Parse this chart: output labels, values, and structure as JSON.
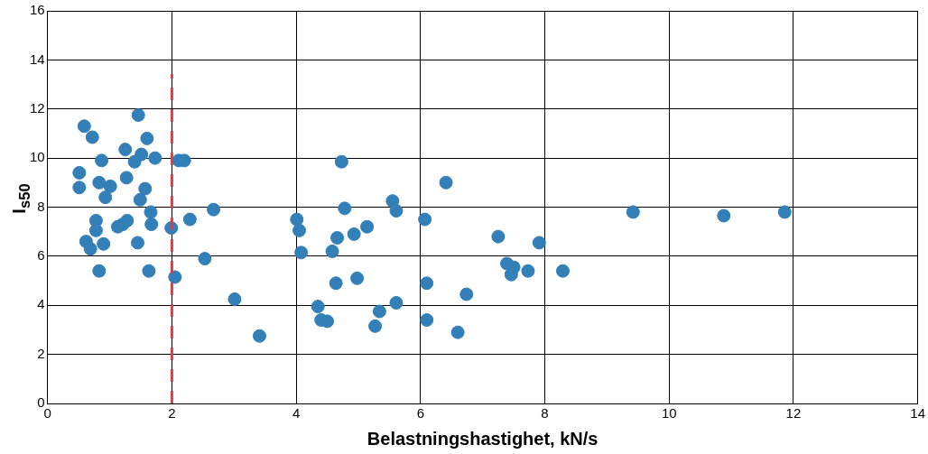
{
  "chart_data": {
    "type": "scatter",
    "xlabel": "Belastningshastighet, kN/s",
    "ylabel": "I$_{s50}$",
    "x": [
      0.59,
      0.72,
      0.51,
      0.51,
      0.87,
      0.83,
      0.93,
      1.01,
      0.78,
      0.78,
      0.9,
      0.62,
      0.69,
      0.83,
      1.25,
      1.46,
      1.6,
      1.51,
      1.4,
      1.27,
      1.73,
      1.57,
      1.49,
      1.13,
      1.21,
      1.28,
      1.66,
      1.67,
      1.45,
      1.63,
      1.99,
      2.05,
      2.11,
      2.2,
      2.29,
      2.67,
      2.53,
      3.01,
      3.41,
      4.01,
      4.05,
      4.08,
      4.35,
      4.4,
      4.5,
      4.58,
      4.64,
      4.66,
      4.73,
      4.78,
      4.93,
      4.98,
      5.14,
      5.27,
      5.34,
      5.55,
      5.61,
      5.61,
      6.07,
      6.1,
      6.1,
      6.41,
      6.6,
      6.74,
      7.25,
      7.39,
      7.5,
      7.46,
      7.73,
      7.91,
      8.29,
      9.42,
      10.88,
      11.86
    ],
    "values": [
      11.3,
      10.85,
      9.4,
      8.8,
      9.9,
      9.0,
      8.4,
      8.85,
      7.45,
      7.05,
      6.5,
      6.6,
      6.3,
      5.4,
      10.35,
      11.75,
      10.8,
      10.15,
      9.85,
      9.2,
      10.0,
      8.75,
      8.3,
      7.2,
      7.3,
      7.45,
      7.8,
      7.3,
      6.55,
      5.4,
      7.15,
      5.15,
      9.9,
      9.9,
      7.5,
      7.9,
      5.9,
      4.25,
      2.75,
      7.5,
      7.05,
      6.15,
      3.95,
      3.4,
      3.35,
      6.2,
      4.9,
      6.75,
      9.85,
      7.95,
      6.9,
      5.1,
      7.2,
      3.15,
      3.75,
      8.25,
      7.85,
      4.1,
      7.5,
      4.9,
      3.4,
      9.0,
      2.9,
      4.45,
      6.8,
      5.7,
      5.55,
      5.25,
      5.4,
      6.55,
      5.4,
      7.8,
      7.65,
      7.8
    ],
    "color": "#337fb8",
    "marker": "circle",
    "xlim": [
      0,
      14
    ],
    "xticks": [
      0,
      2,
      4,
      6,
      8,
      10,
      12,
      14
    ],
    "ylim": [
      0,
      16
    ],
    "yticks": [
      0,
      2,
      4,
      6,
      8,
      10,
      12,
      14,
      16
    ],
    "grid": true,
    "ref_lines": [
      {
        "axis": "x",
        "value": 2,
        "color": "#e8383d",
        "line_style": "dashed"
      }
    ]
  }
}
